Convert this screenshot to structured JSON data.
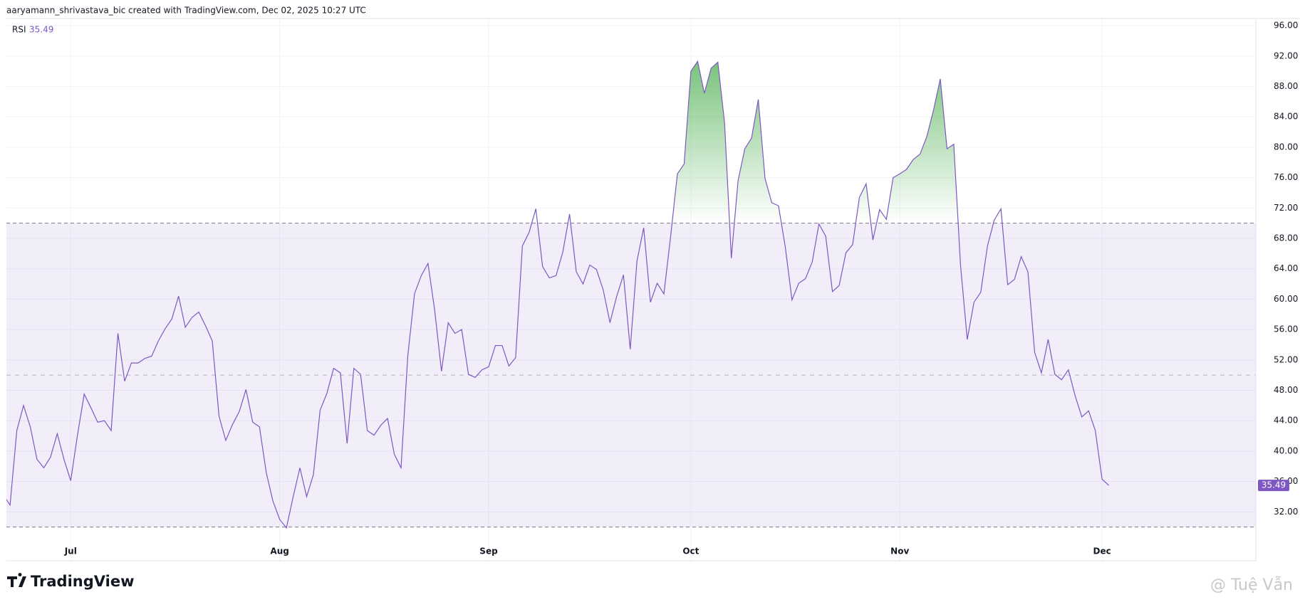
{
  "header": {
    "attribution": "aaryamann_shrivastava_bic created with TradingView.com, Dec 02, 2025 10:27 UTC"
  },
  "footer": {
    "logo": "TradingView",
    "watermark": "@ Tuệ Vẫn"
  },
  "chart_data": {
    "type": "line",
    "categories": [
      null,
      null,
      null,
      null,
      null,
      null,
      null,
      null,
      null,
      null,
      "Jul",
      null,
      null,
      null,
      null,
      null,
      null,
      null,
      null,
      null,
      null,
      null,
      null,
      null,
      null,
      null,
      null,
      null,
      null,
      null,
      null,
      null,
      null,
      null,
      null,
      null,
      null,
      null,
      null,
      null,
      null,
      "Aug",
      null,
      null,
      null,
      null,
      null,
      null,
      null,
      null,
      null,
      null,
      null,
      null,
      null,
      null,
      null,
      null,
      null,
      null,
      null,
      null,
      null,
      null,
      null,
      null,
      null,
      null,
      null,
      null,
      null,
      null,
      "Sep",
      null,
      null,
      null,
      null,
      null,
      null,
      null,
      null,
      null,
      null,
      null,
      null,
      null,
      null,
      null,
      null,
      null,
      null,
      null,
      null,
      null,
      null,
      null,
      null,
      null,
      null,
      null,
      null,
      null,
      "Oct",
      null,
      null,
      null,
      null,
      null,
      null,
      null,
      null,
      null,
      null,
      null,
      null,
      null,
      null,
      null,
      null,
      null,
      null,
      null,
      null,
      null,
      null,
      null,
      null,
      null,
      null,
      null,
      null,
      null,
      null,
      "Nov",
      null,
      null,
      null,
      null,
      null,
      null,
      null,
      null,
      null,
      null,
      null,
      null,
      null,
      null,
      null,
      null,
      null,
      null,
      null,
      null,
      null,
      null,
      null,
      null,
      null,
      null,
      null,
      null,
      null,
      "Dec",
      null
    ],
    "series": [
      {
        "name": "RSI",
        "color": "#7e57c2",
        "values": [
          34.2,
          32.9,
          42.7,
          46,
          43.2,
          38.9,
          37.8,
          39.2,
          42.3,
          38.9,
          36.1,
          42.1,
          47.5,
          45.7,
          43.8,
          44,
          42.7,
          55.5,
          49.2,
          51.6,
          51.6,
          52.2,
          52.5,
          54.5,
          56.1,
          57.4,
          60.4,
          56.3,
          57.6,
          58.3,
          56.5,
          54.5,
          44.6,
          41.4,
          43.5,
          45.2,
          48.1,
          43.8,
          43.2,
          37.2,
          33.4,
          31,
          29.9,
          34,
          37.8,
          34,
          36.9,
          45.4,
          47.6,
          50.9,
          50.3,
          41,
          50.9,
          50.1,
          42.7,
          42.1,
          43.4,
          44.3,
          39.6,
          37.8,
          52.5,
          60.7,
          63.1,
          64.7,
          58.5,
          50.5,
          56.9,
          55.5,
          56,
          50.1,
          49.7,
          50.7,
          51.1,
          53.9,
          53.9,
          51.2,
          52.3,
          67,
          68.8,
          71.9,
          64.3,
          62.8,
          63.1,
          66.2,
          71.2,
          63.6,
          62,
          64.5,
          63.9,
          61.2,
          56.9,
          60.4,
          63.2,
          53.4,
          65,
          69.4,
          59.6,
          62.1,
          60.7,
          68.3,
          76.5,
          77.8,
          90,
          91.3,
          87.1,
          90.4,
          91.2,
          83.2,
          65.4,
          75.6,
          79.8,
          81.2,
          86.3,
          75.9,
          72.7,
          72.3,
          66.9,
          59.9,
          62.1,
          62.7,
          64.9,
          69.9,
          68.3,
          61,
          61.8,
          66.1,
          67.2,
          73.4,
          75.2,
          67.8,
          71.8,
          70.5,
          76,
          76.5,
          77.1,
          78.4,
          79.1,
          81.4,
          84.9,
          89,
          79.8,
          80.4,
          64.5,
          54.7,
          59.6,
          60.9,
          67,
          70.4,
          71.9,
          61.9,
          62.6,
          65.6,
          63.6,
          53,
          50.3,
          54.7,
          50.1,
          49.4,
          50.7,
          47.3,
          44.5,
          45.3,
          42.7,
          36.3,
          35.49
        ]
      }
    ],
    "bands": {
      "upper": 70,
      "middle": 50,
      "lower": 30
    },
    "band_color": "#7e57c2",
    "overbought_color": "#4caf50",
    "ylim": [
      28.47,
      96.95
    ],
    "yticks": [
      {
        "value": 32,
        "label": "32.00"
      },
      {
        "value": 36,
        "label": "36.00"
      },
      {
        "value": 40,
        "label": "40.00"
      },
      {
        "value": 44,
        "label": "44.00"
      },
      {
        "value": 48,
        "label": "48.00"
      },
      {
        "value": 52,
        "label": "52.00"
      },
      {
        "value": 56,
        "label": "56.00"
      },
      {
        "value": 60,
        "label": "60.00"
      },
      {
        "value": 64,
        "label": "64.00"
      },
      {
        "value": 68,
        "label": "68.00"
      },
      {
        "value": 72,
        "label": "72.00"
      },
      {
        "value": 76,
        "label": "76.00"
      },
      {
        "value": 80,
        "label": "80.00"
      },
      {
        "value": 84,
        "label": "84.00"
      },
      {
        "value": 88,
        "label": "88.00"
      },
      {
        "value": 92,
        "label": "92.00"
      },
      {
        "value": 96,
        "label": "96.00"
      }
    ],
    "grid": true
  }
}
